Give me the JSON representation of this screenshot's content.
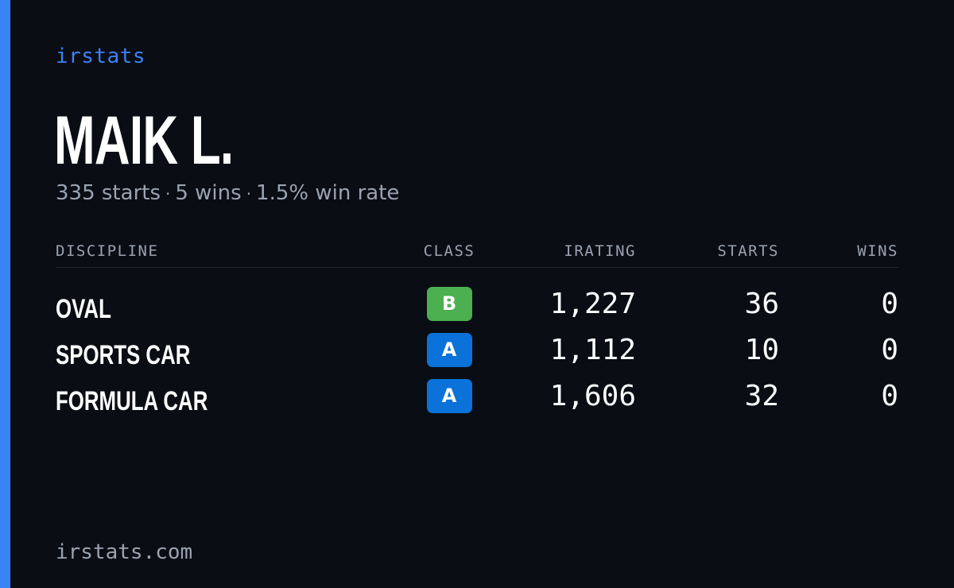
{
  "brand": "irstats",
  "driver": {
    "name": "MAIK L.",
    "starts_text": "335 starts",
    "wins_text": "5 wins",
    "win_rate_text": "1.5% win rate",
    "separator": "·"
  },
  "table": {
    "headers": {
      "discipline": "DISCIPLINE",
      "class": "CLASS",
      "irating": "IRATING",
      "starts": "STARTS",
      "wins": "WINS"
    },
    "rows": [
      {
        "discipline": "OVAL",
        "class": "B",
        "class_color": "#4caf50",
        "irating": "1,227",
        "starts": "36",
        "wins": "0"
      },
      {
        "discipline": "SPORTS CAR",
        "class": "A",
        "class_color": "#0a72d8",
        "irating": "1,112",
        "starts": "10",
        "wins": "0"
      },
      {
        "discipline": "FORMULA CAR",
        "class": "A",
        "class_color": "#0a72d8",
        "irating": "1,606",
        "starts": "32",
        "wins": "0"
      }
    ]
  },
  "footer": {
    "url": "irstats.com"
  },
  "colors": {
    "accent": "#3b82f6",
    "background": "#0a0d14",
    "muted": "#9aa3b2"
  }
}
